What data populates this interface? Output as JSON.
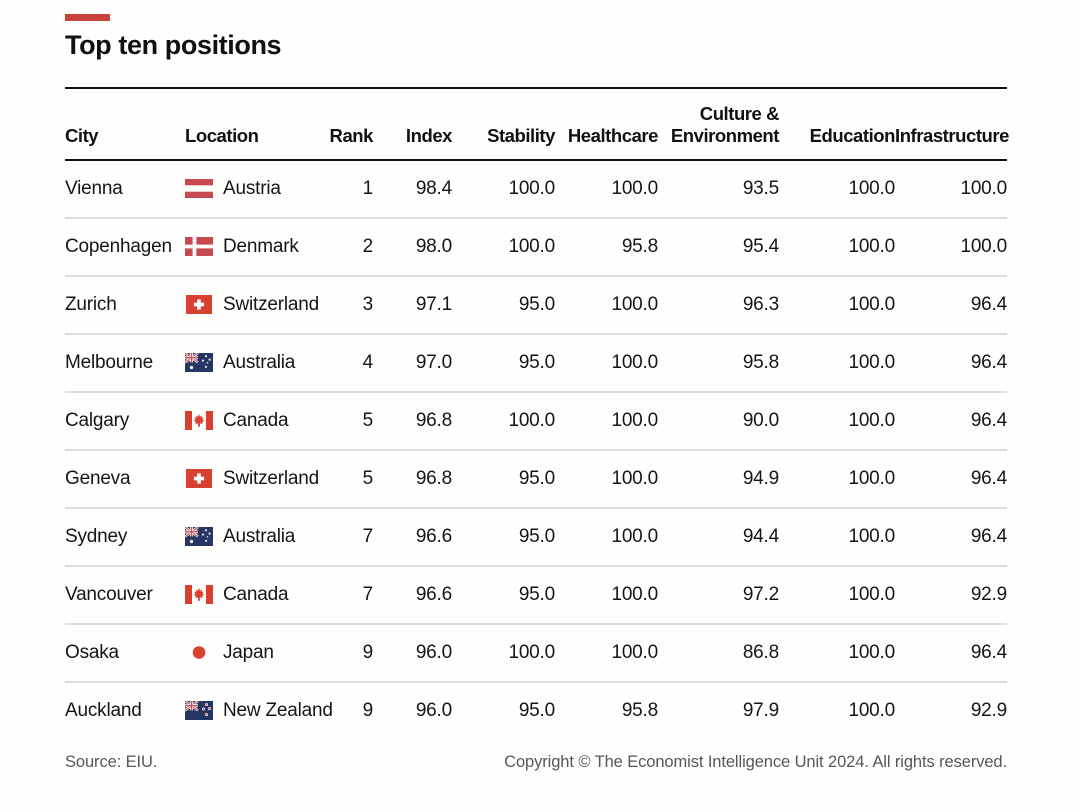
{
  "colors": {
    "accent": "#c8413a",
    "text": "#121212",
    "rule": "#0e0e0e",
    "separator": "#dedddb",
    "footer": "#54585b",
    "flag_red": "#d8402f",
    "flag_rose": "#c94950",
    "flag_navy": "#253564",
    "union_red": "#c2565c",
    "star": "#ece9e4"
  },
  "chart_data": {
    "type": "table",
    "title": "Top ten positions",
    "source": "Source: EIU.",
    "copyright": "Copyright © The Economist Intelligence Unit 2024. All rights reserved.",
    "columns": [
      {
        "id": "city",
        "label": "City",
        "align": "left"
      },
      {
        "id": "location",
        "label": "Location",
        "align": "left"
      },
      {
        "id": "rank",
        "label": "Rank",
        "align": "right"
      },
      {
        "id": "index",
        "label": "Index",
        "align": "right"
      },
      {
        "id": "stability",
        "label": "Stability",
        "align": "right"
      },
      {
        "id": "healthcare",
        "label": "Healthcare",
        "align": "right"
      },
      {
        "id": "culture_environment",
        "label": "Culture &\nEnvironment",
        "align": "right"
      },
      {
        "id": "education",
        "label": "Education",
        "align": "right"
      },
      {
        "id": "infrastructure",
        "label": "Infrastructure",
        "align": "right"
      }
    ],
    "rows": [
      {
        "city": "Vienna",
        "location": "Austria",
        "flag": "austria",
        "rank": "1",
        "index": "98.4",
        "stability": "100.0",
        "healthcare": "100.0",
        "culture_environment": "93.5",
        "education": "100.0",
        "infrastructure": "100.0"
      },
      {
        "city": "Copenhagen",
        "location": "Denmark",
        "flag": "denmark",
        "rank": "2",
        "index": "98.0",
        "stability": "100.0",
        "healthcare": "95.8",
        "culture_environment": "95.4",
        "education": "100.0",
        "infrastructure": "100.0"
      },
      {
        "city": "Zurich",
        "location": "Switzerland",
        "flag": "switzerland",
        "rank": "3",
        "index": "97.1",
        "stability": "95.0",
        "healthcare": "100.0",
        "culture_environment": "96.3",
        "education": "100.0",
        "infrastructure": "96.4"
      },
      {
        "city": "Melbourne",
        "location": "Australia",
        "flag": "australia",
        "rank": "4",
        "index": "97.0",
        "stability": "95.0",
        "healthcare": "100.0",
        "culture_environment": "95.8",
        "education": "100.0",
        "infrastructure": "96.4"
      },
      {
        "city": "Calgary",
        "location": "Canada",
        "flag": "canada",
        "rank": "5",
        "index": "96.8",
        "stability": "100.0",
        "healthcare": "100.0",
        "culture_environment": "90.0",
        "education": "100.0",
        "infrastructure": "96.4"
      },
      {
        "city": "Geneva",
        "location": "Switzerland",
        "flag": "switzerland",
        "rank": "5",
        "index": "96.8",
        "stability": "95.0",
        "healthcare": "100.0",
        "culture_environment": "94.9",
        "education": "100.0",
        "infrastructure": "96.4"
      },
      {
        "city": "Sydney",
        "location": "Australia",
        "flag": "australia",
        "rank": "7",
        "index": "96.6",
        "stability": "95.0",
        "healthcare": "100.0",
        "culture_environment": "94.4",
        "education": "100.0",
        "infrastructure": "96.4"
      },
      {
        "city": "Vancouver",
        "location": "Canada",
        "flag": "canada",
        "rank": "7",
        "index": "96.6",
        "stability": "95.0",
        "healthcare": "100.0",
        "culture_environment": "97.2",
        "education": "100.0",
        "infrastructure": "92.9"
      },
      {
        "city": "Osaka",
        "location": "Japan",
        "flag": "japan",
        "rank": "9",
        "index": "96.0",
        "stability": "100.0",
        "healthcare": "100.0",
        "culture_environment": "86.8",
        "education": "100.0",
        "infrastructure": "96.4"
      },
      {
        "city": "Auckland",
        "location": "New Zealand",
        "flag": "new-zealand",
        "rank": "9",
        "index": "96.0",
        "stability": "95.0",
        "healthcare": "95.8",
        "culture_environment": "97.9",
        "education": "100.0",
        "infrastructure": "92.9"
      }
    ]
  }
}
